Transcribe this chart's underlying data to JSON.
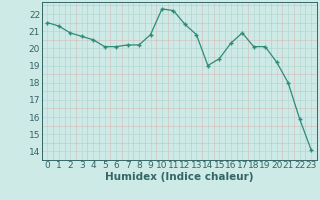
{
  "xlabel": "Humidex (Indice chaleur)",
  "x_values": [
    0,
    1,
    2,
    3,
    4,
    5,
    6,
    7,
    8,
    9,
    10,
    11,
    12,
    13,
    14,
    15,
    16,
    17,
    18,
    19,
    20,
    21,
    22,
    23
  ],
  "y_values": [
    21.5,
    21.3,
    20.9,
    20.7,
    20.5,
    20.1,
    20.1,
    20.2,
    20.2,
    20.8,
    22.3,
    22.2,
    21.4,
    20.8,
    19.0,
    19.4,
    20.3,
    20.9,
    20.1,
    20.1,
    19.2,
    18.0,
    15.9,
    14.1
  ],
  "ylim": [
    13.5,
    22.7
  ],
  "xlim": [
    -0.5,
    23.5
  ],
  "yticks": [
    14,
    15,
    16,
    17,
    18,
    19,
    20,
    21,
    22
  ],
  "xticks": [
    0,
    1,
    2,
    3,
    4,
    5,
    6,
    7,
    8,
    9,
    10,
    11,
    12,
    13,
    14,
    15,
    16,
    17,
    18,
    19,
    20,
    21,
    22,
    23
  ],
  "line_color": "#2d8b78",
  "marker_color": "#2d8b78",
  "bg_color": "#ceeae6",
  "grid_major_color": "#b8d8d4",
  "grid_minor_color": "#d4b8b8",
  "text_color": "#336666",
  "tick_label_fontsize": 6.5,
  "xlabel_fontsize": 7.5
}
